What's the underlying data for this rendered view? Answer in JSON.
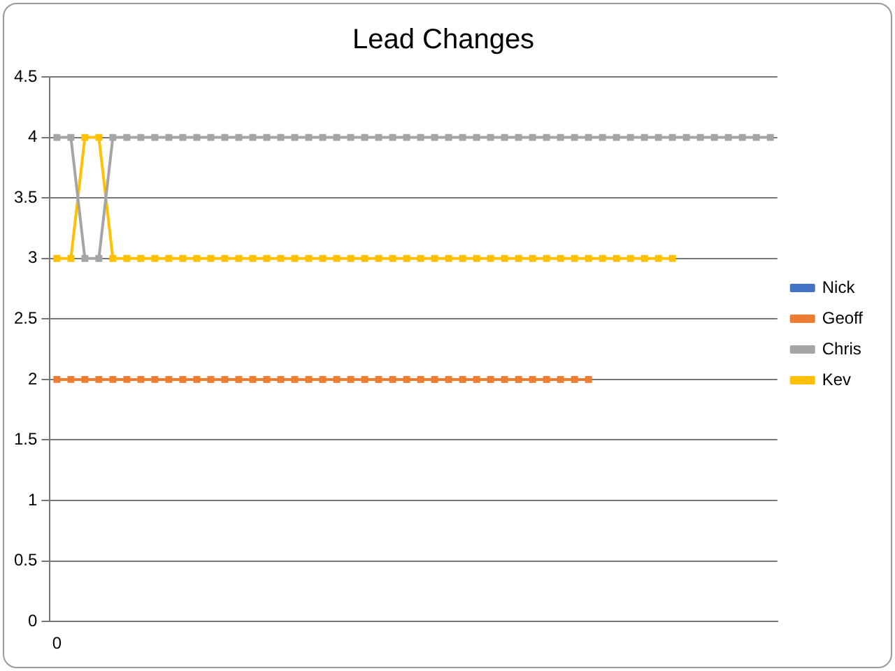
{
  "chart_data": {
    "type": "line",
    "title": "Lead Changes",
    "categories": [
      "0",
      null,
      null,
      null,
      null,
      null,
      null,
      null,
      null,
      null,
      null,
      null,
      null,
      null,
      null,
      null,
      null,
      null,
      null,
      null,
      null,
      null,
      null,
      null,
      null,
      null,
      null,
      null,
      null,
      null,
      null,
      null,
      null,
      null,
      null,
      null,
      null,
      null,
      null,
      null,
      null,
      null,
      null,
      null,
      null,
      null,
      null,
      null,
      null,
      null,
      null,
      null
    ],
    "series": [
      {
        "name": "Nick",
        "color": "#4472c4",
        "values": [
          null,
          null,
          null,
          null,
          null,
          null,
          null,
          null,
          null,
          null,
          null,
          null,
          null,
          null,
          null,
          null,
          null,
          null,
          null,
          null,
          null,
          null,
          null,
          null,
          null,
          null,
          null,
          null,
          null,
          null,
          null,
          null,
          null,
          null,
          null,
          null,
          null,
          null,
          null,
          null,
          null,
          null,
          null,
          null,
          null,
          null,
          null,
          null,
          null,
          null,
          null,
          null
        ]
      },
      {
        "name": "Geoff",
        "color": "#ed7d31",
        "values": [
          2,
          2,
          2,
          2,
          2,
          2,
          2,
          2,
          2,
          2,
          2,
          2,
          2,
          2,
          2,
          2,
          2,
          2,
          2,
          2,
          2,
          2,
          2,
          2,
          2,
          2,
          2,
          2,
          2,
          2,
          2,
          2,
          2,
          2,
          2,
          2,
          2,
          2,
          2,
          null,
          null,
          null,
          null,
          null,
          null,
          null,
          null,
          null,
          null,
          null,
          null,
          null
        ]
      },
      {
        "name": "Chris",
        "color": "#a5a5a5",
        "values": [
          4,
          4,
          3,
          3,
          4,
          4,
          4,
          4,
          4,
          4,
          4,
          4,
          4,
          4,
          4,
          4,
          4,
          4,
          4,
          4,
          4,
          4,
          4,
          4,
          4,
          4,
          4,
          4,
          4,
          4,
          4,
          4,
          4,
          4,
          4,
          4,
          4,
          4,
          4,
          4,
          4,
          4,
          4,
          4,
          4,
          4,
          4,
          4,
          4,
          4,
          4,
          4
        ]
      },
      {
        "name": "Kev",
        "color": "#ffc000",
        "values": [
          3,
          3,
          4,
          4,
          3,
          3,
          3,
          3,
          3,
          3,
          3,
          3,
          3,
          3,
          3,
          3,
          3,
          3,
          3,
          3,
          3,
          3,
          3,
          3,
          3,
          3,
          3,
          3,
          3,
          3,
          3,
          3,
          3,
          3,
          3,
          3,
          3,
          3,
          3,
          3,
          3,
          3,
          3,
          3,
          3,
          null,
          null,
          null,
          null,
          null,
          null,
          null
        ]
      }
    ],
    "ylim": [
      0,
      4.5
    ],
    "yticks": [
      0,
      0.5,
      1,
      1.5,
      2,
      2.5,
      3,
      3.5,
      4,
      4.5
    ],
    "grid": "y",
    "legend": "right",
    "marker": "square",
    "line_style": "solid"
  }
}
